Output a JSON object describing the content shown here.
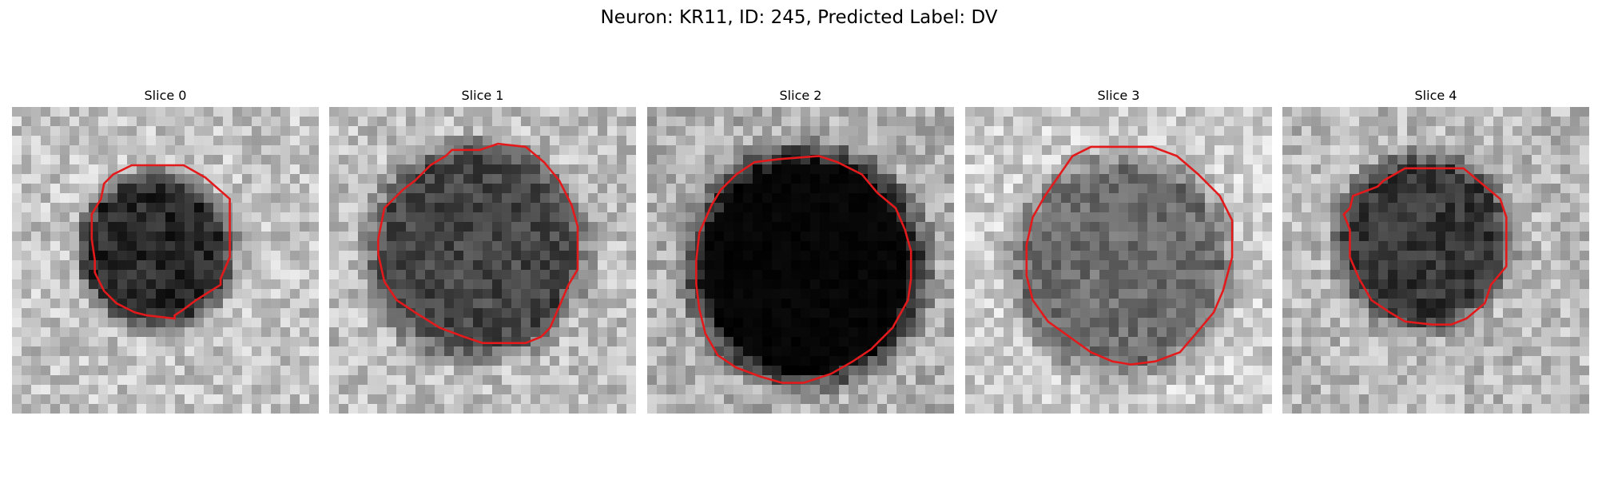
{
  "figure": {
    "title": "Neuron: KR11, ID: 245, Predicted Label: DV"
  },
  "colors": {
    "contour": "#e31a1c"
  },
  "panels": [
    {
      "title": "Slice 0"
    },
    {
      "title": "Slice 1"
    },
    {
      "title": "Slice 2"
    },
    {
      "title": "Slice 3"
    },
    {
      "title": "Slice 4"
    }
  ]
}
